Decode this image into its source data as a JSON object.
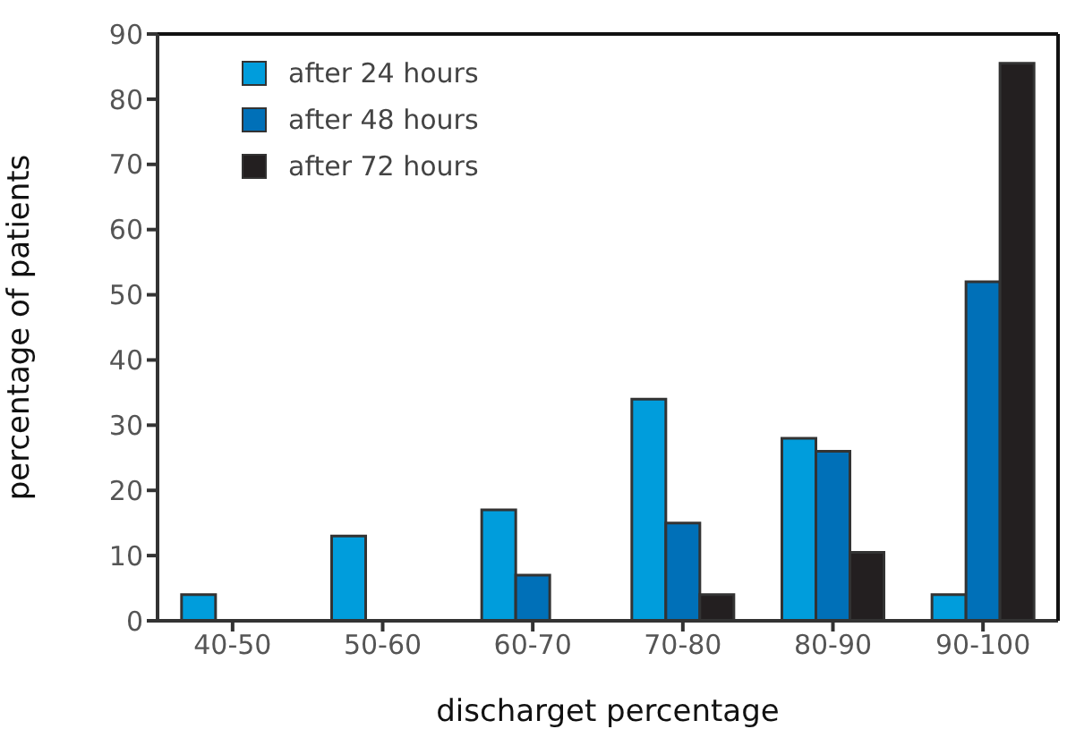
{
  "chart_data": {
    "type": "bar",
    "xlabel": "discharget percentage",
    "ylabel": "percentage of patients",
    "categories": [
      "40-50",
      "50-60",
      "60-70",
      "70-80",
      "80-90",
      "90-100"
    ],
    "series": [
      {
        "name": "after 24 hours",
        "color": "#009ddc",
        "values": [
          4,
          13,
          17,
          34,
          28,
          4
        ]
      },
      {
        "name": "after 48 hours",
        "color": "#0070b8",
        "values": [
          0,
          0,
          7,
          15,
          26,
          52
        ]
      },
      {
        "name": "after 72 hours",
        "color": "#231f20",
        "values": [
          0,
          0,
          0,
          4,
          10.5,
          85.5
        ]
      }
    ],
    "ylim": [
      0,
      90
    ],
    "yticks": [
      0,
      10,
      20,
      30,
      40,
      50,
      60,
      70,
      80,
      90
    ],
    "grid": false,
    "legend": "top left"
  }
}
